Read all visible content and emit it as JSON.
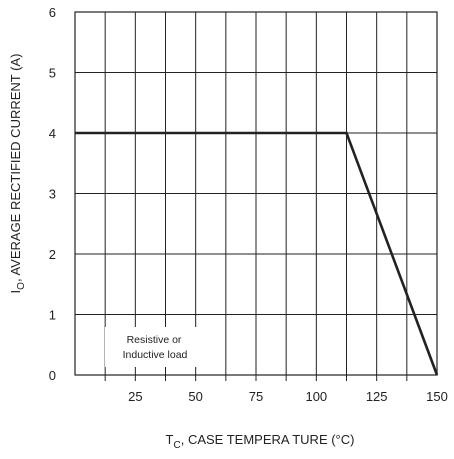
{
  "chart_data": {
    "type": "line",
    "title": "",
    "xlabel": {
      "symbol": "T",
      "subscript": "C",
      "text": ", CASE   TEMPERA  TURE   (°C)"
    },
    "ylabel": {
      "symbol": "I",
      "subscript": "O",
      "text": ", AVERAGE   RECTIFIED   CURRENT   (A)"
    },
    "xlim": [
      0,
      150
    ],
    "ylim": [
      0,
      6
    ],
    "xticks": [
      25,
      50,
      75,
      100,
      125,
      150
    ],
    "yticks": [
      0,
      1,
      2,
      3,
      4,
      5,
      6
    ],
    "x_minor_grid_step": 12.5,
    "y_grid_step": 1,
    "grid": true,
    "series": [
      {
        "name": "",
        "x": [
          0,
          112.5,
          150
        ],
        "y": [
          4,
          4,
          0
        ]
      }
    ],
    "annotation": {
      "lines": [
        "Resistive   or",
        "Inductive  load"
      ]
    },
    "colors": {
      "line": "#222222",
      "grid": "#222222",
      "text": "#222222",
      "background": "#ffffff"
    }
  }
}
